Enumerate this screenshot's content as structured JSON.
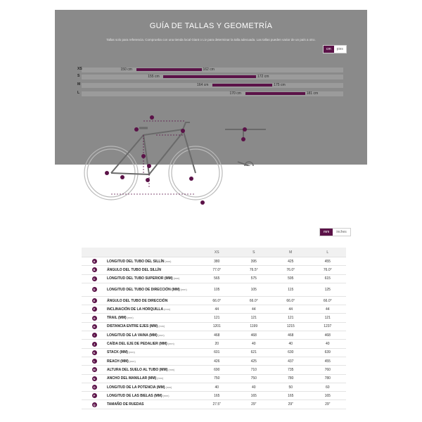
{
  "modal": {
    "title": "GUÍA DE TALLAS Y GEOMETRÍA",
    "subtitle": "Tallas solo para referencia. Comprueba con una tienda local Giant o Liv para determinar la talla adecuada. Las tallas pueden variar de un país a otro.",
    "units": {
      "active": "cm",
      "inactive": "pies"
    }
  },
  "size_guide": [
    {
      "size": "XS",
      "min": "150 cm",
      "max": "162 cm",
      "from": 150,
      "to": 162
    },
    {
      "size": "S",
      "min": "155 cm",
      "max": "172 cm",
      "from": 155,
      "to": 172
    },
    {
      "size": "M",
      "min": "164 cm",
      "max": "175 cm",
      "from": 164,
      "to": 175
    },
    {
      "size": "L",
      "min": "170 cm",
      "max": "181 cm",
      "from": 170,
      "to": 181
    }
  ],
  "table_units": {
    "active": "mm",
    "inactive": "inches"
  },
  "geometry": {
    "columns": [
      "XS",
      "S",
      "M",
      "L"
    ],
    "rows": [
      {
        "letter": "A",
        "label": "LONGITUD DEL TUBO DEL SILLÍN",
        "unit": "(mm)",
        "values": [
          "380",
          "395",
          "425",
          "455"
        ]
      },
      {
        "letter": "B",
        "label": "ÁNGULO DEL TUBO DEL SILLÍN",
        "unit": "",
        "values": [
          "77.0°",
          "76.5°",
          "76.0°",
          "76.0°"
        ]
      },
      {
        "letter": "C",
        "label": "LONGITUD DEL TUBO SUPERIOR (MM)",
        "unit": "(mm)",
        "values": [
          "565",
          "575",
          "595",
          "615"
        ]
      },
      {
        "letter": "D",
        "label": "LONGITUD DEL TUBO DE DIRECCIÓN (MM)",
        "unit": "(mm)",
        "values": [
          "105",
          "105",
          "115",
          "125"
        ],
        "tall": true
      },
      {
        "letter": "E",
        "label": "ÁNGULO DEL TUBO DE DIRECCIÓN",
        "unit": "",
        "values": [
          "66.0°",
          "66.0°",
          "66.0°",
          "66.0°"
        ]
      },
      {
        "letter": "F",
        "label": "INCLINACIÓN DE LA HORQUILLA",
        "unit": "(mm)",
        "values": [
          "44",
          "44",
          "44",
          "44"
        ]
      },
      {
        "letter": "G",
        "label": "TRAIL (MM)",
        "unit": "(mm)",
        "values": [
          "121",
          "121",
          "121",
          "121"
        ]
      },
      {
        "letter": "H",
        "label": "DISTANCIA ENTRE EJES (MM)",
        "unit": "(mm)",
        "values": [
          "1201",
          "1199",
          "1215",
          "1237"
        ]
      },
      {
        "letter": "I",
        "label": "LONGITUD DE LA VAINA (MM)",
        "unit": "(mm)",
        "values": [
          "468",
          "468",
          "468",
          "468"
        ]
      },
      {
        "letter": "J",
        "label": "CAÍDA DEL EJE DE PEDALIER (MM)",
        "unit": "(mm)",
        "values": [
          "20",
          "40",
          "40",
          "40"
        ]
      },
      {
        "letter": "K",
        "label": "STACK (MM)",
        "unit": "(mm)",
        "values": [
          "601",
          "621",
          "630",
          "639"
        ]
      },
      {
        "letter": "L",
        "label": "REACH (MM)",
        "unit": "(mm)",
        "values": [
          "426",
          "425",
          "437",
          "455"
        ]
      },
      {
        "letter": "M",
        "label": "ALTURA DEL SUELO AL TUBO (MM)",
        "unit": "(mm)",
        "values": [
          "690",
          "710",
          "735",
          "760"
        ]
      },
      {
        "letter": "N",
        "label": "ANCHO DEL MANILLAR (MM)",
        "unit": "(mm)",
        "values": [
          "750",
          "750",
          "780",
          "780"
        ]
      },
      {
        "letter": "O",
        "label": "LONGITUD DE LA POTENCIA (MM)",
        "unit": "(mm)",
        "values": [
          "40",
          "40",
          "50",
          "60"
        ]
      },
      {
        "letter": "P",
        "label": "LONGITUD DE LAS BIELAS (MM)",
        "unit": "(mm)",
        "values": [
          "165",
          "165",
          "165",
          "165"
        ]
      },
      {
        "letter": "Q",
        "label": "TAMAÑO DE RUEDAS",
        "unit": "",
        "values": [
          "27.5\"",
          "29\"",
          "29\"",
          "29\""
        ]
      }
    ]
  },
  "colors": {
    "accent": "#5b1248",
    "overlay": "#8a8a8a"
  }
}
